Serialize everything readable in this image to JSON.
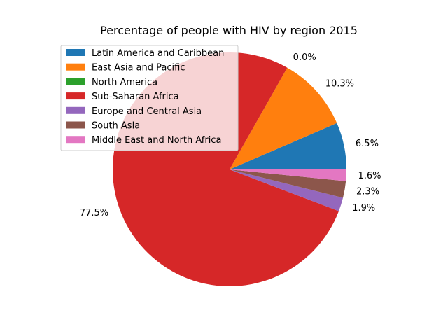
{
  "chart_data": {
    "type": "pie",
    "title": "Percentage of people with HIV by region 2015",
    "labels": [
      "Latin America and Caribbean",
      "East Asia and Pacific",
      "North America",
      "Sub-Saharan Africa",
      "Europe and Central Asia",
      "South Asia",
      "Middle East and North Africa"
    ],
    "values": [
      6.5,
      10.3,
      0.0,
      77.5,
      1.9,
      2.3,
      1.6
    ],
    "value_labels": [
      "6.5%",
      "10.3%",
      "0.0%",
      "77.5%",
      "1.9%",
      "2.3%",
      "1.6%"
    ],
    "colors": [
      "#1f77b4",
      "#ff7f0e",
      "#2ca02c",
      "#d62728",
      "#9467bd",
      "#8c564b",
      "#e377c2"
    ],
    "start_angle_deg": 0,
    "direction": "counterclockwise",
    "legend": "upper-left"
  }
}
